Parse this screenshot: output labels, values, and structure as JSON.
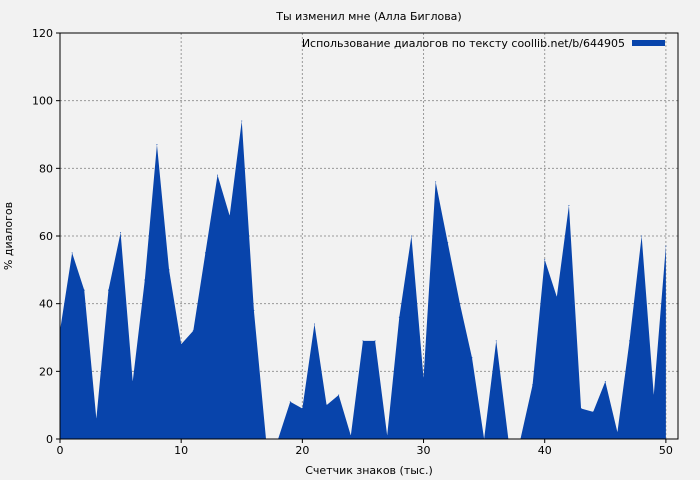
{
  "chart_data": {
    "type": "area",
    "title": "Ты изменил мне (Алла Биглова)",
    "xlabel": "Счетчик знаков (тыс.)",
    "ylabel": "% диалогов",
    "xlim": [
      0,
      51
    ],
    "ylim": [
      0,
      120
    ],
    "xticks": [
      0,
      10,
      20,
      30,
      40,
      50
    ],
    "yticks": [
      0,
      20,
      40,
      60,
      80,
      100,
      120
    ],
    "grid": true,
    "legend_position": "top-right",
    "colors": {
      "series": "#0844ab",
      "background": "#f2f2f2",
      "grid": "#999999"
    },
    "series": [
      {
        "name": "Использование диалогов по тексту coollib.net/b/644905",
        "x": [
          0,
          1,
          2,
          3,
          4,
          5,
          6,
          7,
          8,
          9,
          10,
          11,
          12,
          13,
          14,
          15,
          16,
          17,
          18,
          19,
          20,
          21,
          22,
          23,
          24,
          25,
          26,
          27,
          28,
          29,
          30,
          31,
          32,
          33,
          34,
          35,
          36,
          37,
          38,
          39,
          40,
          41,
          42,
          43,
          44,
          45,
          46,
          47,
          48,
          49,
          50
        ],
        "values": [
          32,
          55,
          44,
          6,
          44,
          61,
          17,
          47,
          87,
          50,
          28,
          32,
          55,
          78,
          66,
          94,
          38,
          0,
          0,
          11,
          9,
          34,
          10,
          13,
          1,
          29,
          29,
          1,
          36,
          60,
          18,
          76,
          58,
          40,
          24,
          0,
          29,
          0,
          0,
          16,
          53,
          42,
          69,
          9,
          8,
          17,
          2,
          29,
          60,
          13,
          57
        ]
      }
    ]
  }
}
